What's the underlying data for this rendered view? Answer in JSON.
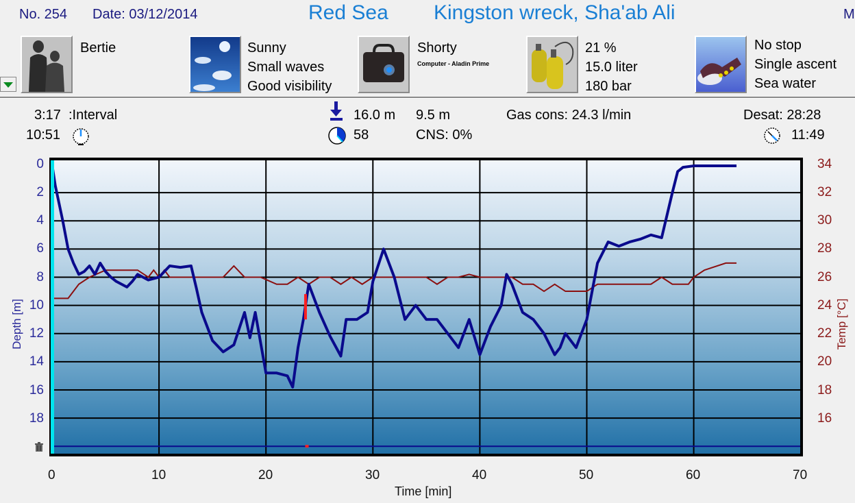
{
  "header": {
    "dive_number": "No. 254",
    "date": "Date: 03/12/2014",
    "region": "Red Sea",
    "site": "Kingston wreck, Sha'ab Ali",
    "truncated_right": "M"
  },
  "info_panels": {
    "buddy": {
      "icon": "divers-icon",
      "lines": [
        "Bertie"
      ]
    },
    "conditions": {
      "icon": "sky-weather-icon",
      "lines": [
        "Sunny",
        "Small waves",
        "Good visibility"
      ]
    },
    "equipment": {
      "icon": "dive-bag-icon",
      "lines": [
        "Shorty"
      ],
      "small_line": "Computer - Aladin Prime"
    },
    "gas": {
      "icon": "tanks-icon",
      "lines": [
        "21 %",
        "15.0 liter",
        "180 bar"
      ]
    },
    "dive_type": {
      "icon": "diver-swimming-icon",
      "lines": [
        "No stop",
        "Single ascent",
        "Sea water"
      ]
    }
  },
  "stats": {
    "interval": "3:17",
    "interval_label": ":Interval",
    "entry_time": "10:51",
    "max_depth": "16.0 m",
    "avg_depth": "9.5 m",
    "duration": "58",
    "cns": "CNS:  0%",
    "gas_cons": "Gas cons: 24.3 l/min",
    "desat": "Desat: 28:28",
    "exit_time": "11:49"
  },
  "colors": {
    "depth_line": "#0a0a8c",
    "temp_line": "#8b1010",
    "ascent_warning": "#ff2020",
    "title_blue": "#1a7fd4",
    "header_navy": "#1a1a80",
    "plot_top": "#f2f6fb",
    "plot_bottom": "#1f6fa6",
    "start_marker": "#00e5ee"
  },
  "chart_data": {
    "type": "line",
    "title": "",
    "xlabel": "Time [min]",
    "ylabel": "Depth [m]",
    "ylabel_right": "Temp [°C]",
    "xlim": [
      0,
      70
    ],
    "ylim": [
      0,
      20
    ],
    "ylim_right": [
      14,
      34
    ],
    "grid": true,
    "x_ticks": [
      "0",
      "10",
      "20",
      "30",
      "40",
      "50",
      "60",
      "70"
    ],
    "y_ticks": [
      "0",
      "2",
      "4",
      "6",
      "8",
      "10",
      "12",
      "14",
      "16",
      "18"
    ],
    "y_ticks_right": [
      "34",
      "32",
      "30",
      "28",
      "26",
      "24",
      "22",
      "20",
      "18",
      "16"
    ],
    "series": [
      {
        "name": "Depth [m]",
        "axis": "left",
        "x": [
          0,
          0.3,
          1,
          1.5,
          2,
          2.5,
          3,
          3.5,
          4,
          4.5,
          5,
          5.5,
          6,
          7,
          7.5,
          8,
          9,
          10,
          11,
          12,
          13,
          13.5,
          14,
          15,
          16,
          17,
          18,
          18.5,
          19,
          20,
          21,
          22,
          22.5,
          23,
          23.5,
          24,
          25,
          26,
          27,
          27.5,
          28.5,
          29.5,
          30,
          31,
          32,
          33,
          34,
          35,
          36,
          37,
          38,
          39,
          40,
          41,
          42,
          42.5,
          43,
          44,
          45,
          46,
          47,
          47.5,
          48,
          49,
          50,
          51,
          52,
          53,
          54,
          55,
          56,
          57,
          58,
          58.5,
          59,
          60,
          62,
          64
        ],
        "values": [
          0,
          1.5,
          4,
          6,
          7,
          7.8,
          7.6,
          7.2,
          7.8,
          7.0,
          7.6,
          8.0,
          8.3,
          8.7,
          8.3,
          7.8,
          8.2,
          8.0,
          7.2,
          7.3,
          7.2,
          8.8,
          10.5,
          12.5,
          13.3,
          12.8,
          10.5,
          12.3,
          10.5,
          14.8,
          14.8,
          15.0,
          15.8,
          13.0,
          11.0,
          8.5,
          10.5,
          12.2,
          13.6,
          11.0,
          11.0,
          10.5,
          8.3,
          6.0,
          8.0,
          11.0,
          10.0,
          11.0,
          11.0,
          12.0,
          13.0,
          11.0,
          13.5,
          11.5,
          10.0,
          7.8,
          8.5,
          10.5,
          11.0,
          12.0,
          13.5,
          13.0,
          12.0,
          13.0,
          11.0,
          7.0,
          5.5,
          5.8,
          5.5,
          5.3,
          5.0,
          5.2,
          2.0,
          0.5,
          0.2,
          0.1,
          0.1,
          0.1
        ]
      },
      {
        "name": "Temp [°C]",
        "axis": "right",
        "x": [
          0,
          1.5,
          2.5,
          3.5,
          5,
          8,
          9,
          9.5,
          10,
          10.5,
          11,
          12,
          14,
          16,
          17,
          18,
          19.5,
          21,
          22,
          23,
          24,
          25,
          26,
          27,
          28,
          29,
          30,
          35,
          36,
          37,
          38,
          39,
          40,
          43,
          44,
          45,
          46,
          47,
          48,
          49,
          50,
          51,
          56,
          57,
          58,
          59.5,
          60,
          61,
          63,
          64
        ],
        "values": [
          24.5,
          24.5,
          25.5,
          26.0,
          26.5,
          26.5,
          26.0,
          26.5,
          26.0,
          26.5,
          26.0,
          26.0,
          26.0,
          26.0,
          26.8,
          26.0,
          26.0,
          25.5,
          25.5,
          26.0,
          25.5,
          26.0,
          26.0,
          25.5,
          26.0,
          25.5,
          26.0,
          26.0,
          25.5,
          26.0,
          26.0,
          26.2,
          26.0,
          26.0,
          25.5,
          25.5,
          25.0,
          25.5,
          25.0,
          25.0,
          25.0,
          25.5,
          25.5,
          26.0,
          25.5,
          25.5,
          26.0,
          26.5,
          27.0,
          27.0
        ]
      }
    ],
    "annotations": [
      {
        "type": "ascent-rate-warning",
        "x": 23.7,
        "depth_from": 11.0,
        "depth_to": 9.2
      },
      {
        "type": "bottom-marker-line",
        "depth": 20,
        "marker_x": 23.8
      }
    ]
  }
}
